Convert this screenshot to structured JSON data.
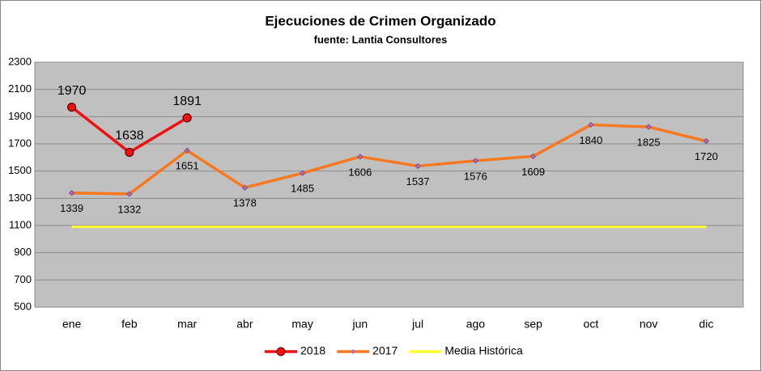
{
  "chart_data": {
    "type": "line",
    "title": "Ejecuciones  de Crimen Organizado",
    "subtitle": "fuente: Lantia Consultores",
    "categories": [
      "ene",
      "feb",
      "mar",
      "abr",
      "may",
      "jun",
      "jul",
      "ago",
      "sep",
      "oct",
      "nov",
      "dic"
    ],
    "series": [
      {
        "name": "2018",
        "color": "#ee1111",
        "values": [
          1970,
          1638,
          1891,
          null,
          null,
          null,
          null,
          null,
          null,
          null,
          null,
          null
        ]
      },
      {
        "name": "2017",
        "color": "#f7781e",
        "values": [
          1339,
          1332,
          1651,
          1378,
          1485,
          1606,
          1537,
          1576,
          1609,
          1840,
          1825,
          1720
        ]
      },
      {
        "name": "Media Histórica",
        "color": "#ffff33",
        "values": [
          1090,
          1090,
          1090,
          1090,
          1090,
          1090,
          1090,
          1090,
          1090,
          1090,
          1090,
          1090
        ]
      }
    ],
    "ylim": [
      500,
      2300
    ],
    "yticks": [
      500,
      700,
      900,
      1100,
      1300,
      1500,
      1700,
      1900,
      2100,
      2300
    ],
    "grid": true,
    "legend": "bottom"
  }
}
